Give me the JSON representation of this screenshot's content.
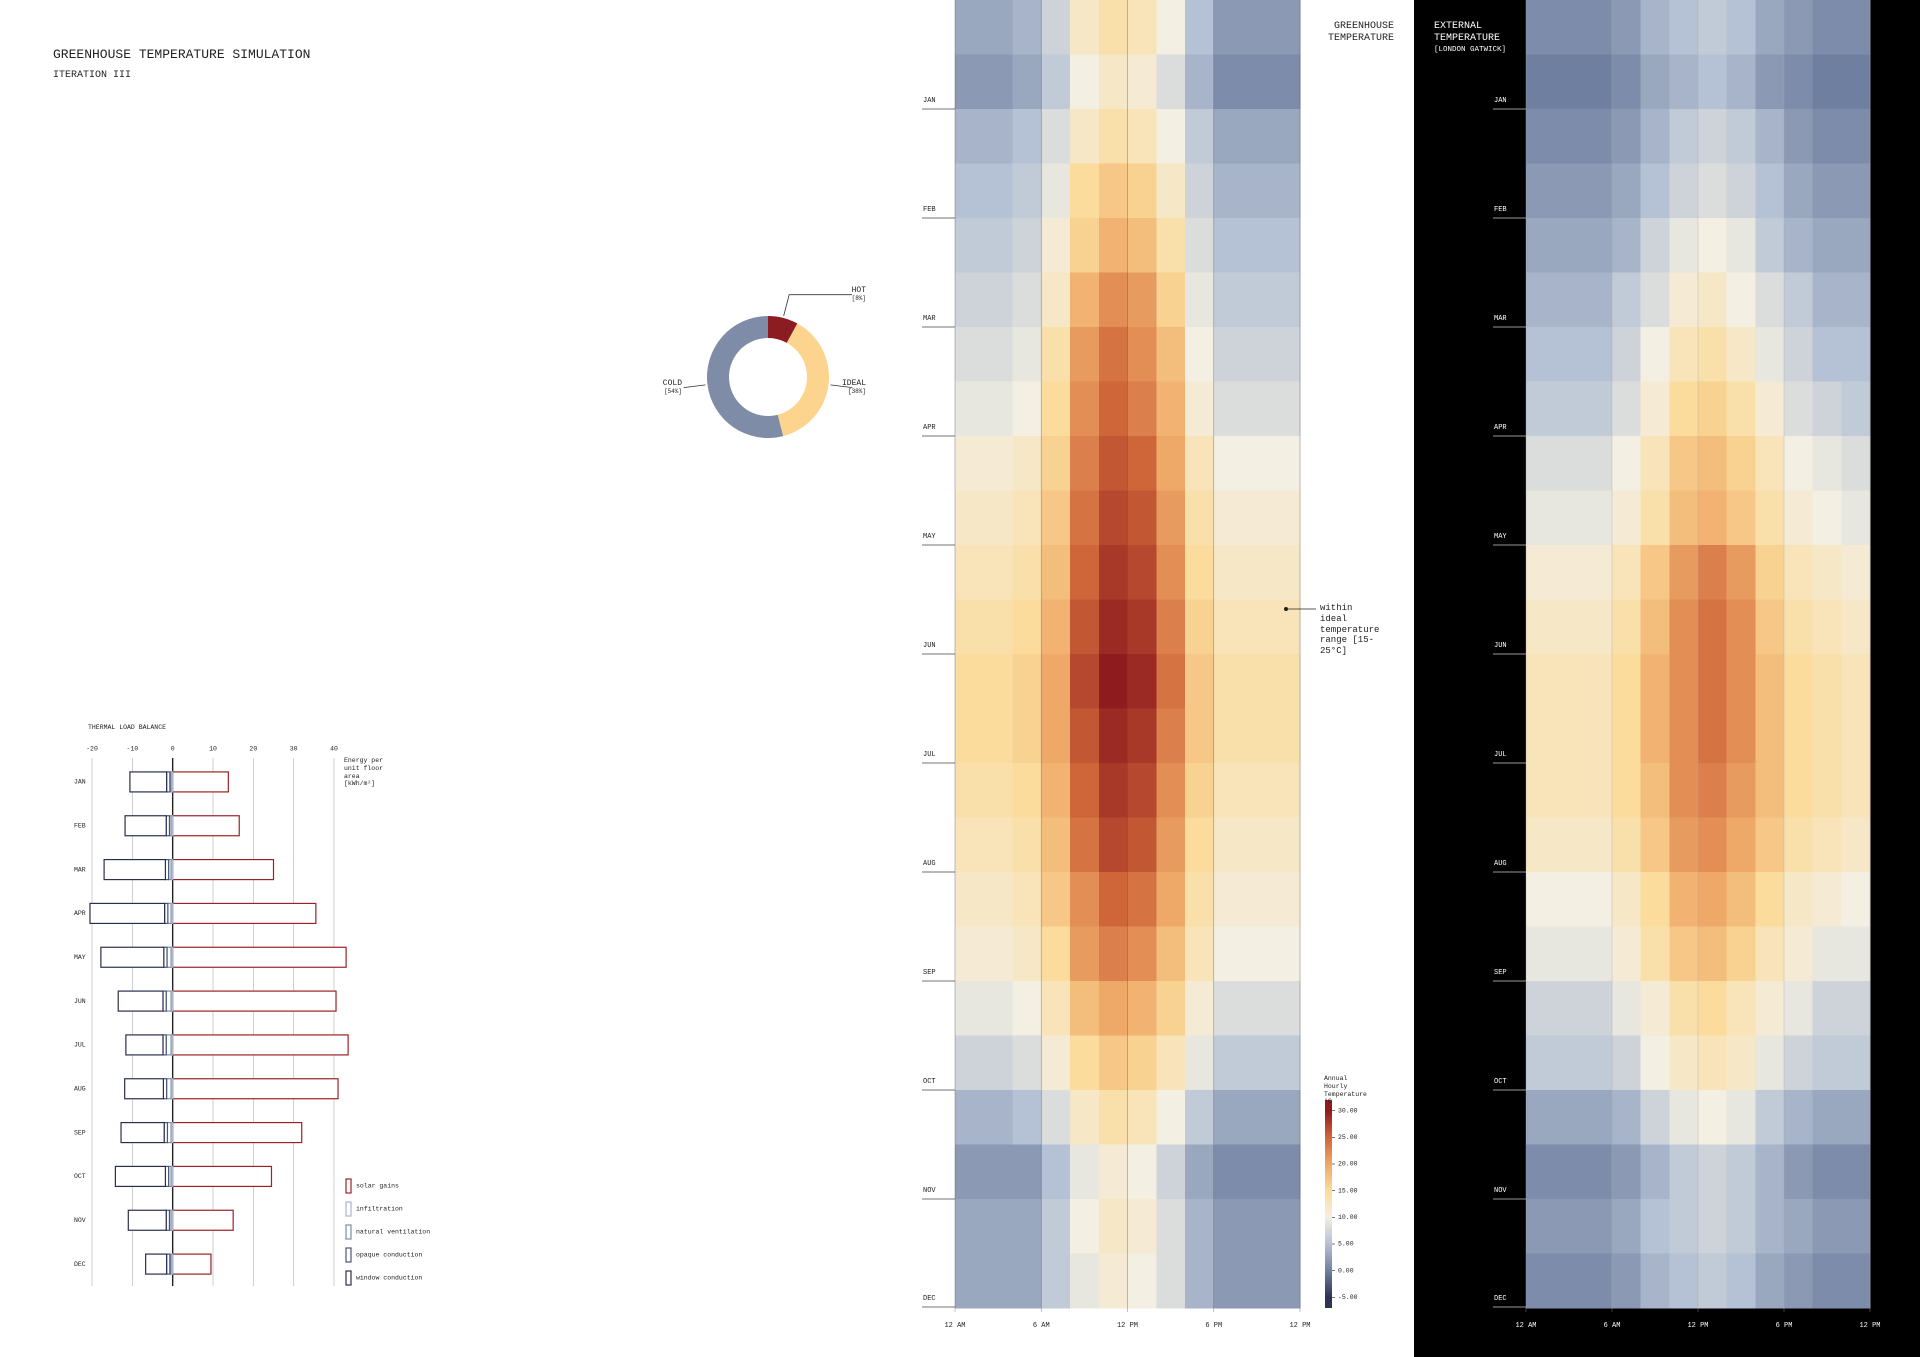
{
  "header": {
    "title": "GREENHOUSE TEMPERATURE SIMULATION",
    "subtitle": "ITERATION III"
  },
  "chart_data": [
    {
      "type": "donut",
      "categories": [
        "HOT",
        "IDEAL",
        "COLD"
      ],
      "values": [
        8,
        38,
        54
      ],
      "value_labels": [
        "[8%]",
        "[38%]",
        "[54%]"
      ],
      "colors": [
        "#8b1c22",
        "#fdd48e",
        "#7f8ca7"
      ]
    },
    {
      "type": "bar",
      "orientation": "horizontal",
      "stacked": true,
      "title": "THERMAL LOAD BALANCE",
      "xlabel": "Energy per unit floor area [kWh/m²]",
      "categories": [
        "JAN",
        "FEB",
        "MAR",
        "APR",
        "MAY",
        "JUN",
        "JUL",
        "AUG",
        "SEP",
        "OCT",
        "NOV",
        "DEC"
      ],
      "series": [
        {
          "name": "solar gains",
          "color": "#9b2226",
          "values": [
            13.8,
            16.5,
            25,
            35.5,
            43,
            40.5,
            43.5,
            41,
            32,
            24.5,
            15,
            9.5
          ]
        },
        {
          "name": "infiltration",
          "color": "#aab6cc",
          "values": [
            -0.4,
            -0.4,
            -0.4,
            -0.4,
            -0.4,
            -0.4,
            -0.4,
            -0.4,
            -0.4,
            -0.4,
            -0.4,
            -0.4
          ]
        },
        {
          "name": "natural ventilation",
          "color": "#7d8ba6",
          "values": [
            -0.3,
            -0.4,
            -0.6,
            -0.8,
            -1,
            -1.2,
            -1.2,
            -1.1,
            -0.9,
            -0.6,
            -0.4,
            -0.3
          ]
        },
        {
          "name": "opaque conduction",
          "color": "#4a5577",
          "values": [
            -0.8,
            -0.8,
            -0.8,
            -0.8,
            -0.8,
            -0.8,
            -0.8,
            -0.8,
            -0.8,
            -0.8,
            -0.8,
            -0.8
          ]
        },
        {
          "name": "window conduction",
          "color": "#2b2f4e",
          "values": [
            -9.1,
            -10.2,
            -15.2,
            -18.5,
            -15.6,
            -11.1,
            -9.2,
            -9.6,
            -10.7,
            -12.4,
            -9.4,
            -5.2
          ]
        }
      ],
      "xlim": [
        -20,
        40
      ],
      "xticks": [
        -20,
        -10,
        0,
        10,
        20,
        30,
        40
      ],
      "grid": true
    },
    {
      "type": "heatmap",
      "title": "GREENHOUSE TEMPERATURE",
      "annotation": "within ideal temperature range [15-25°C]",
      "y_categories": [
        null,
        "JAN",
        null,
        "FEB",
        null,
        "MAR",
        null,
        "APR",
        null,
        "MAY",
        null,
        "JUN",
        null,
        "JUL",
        null,
        "AUG",
        null,
        "SEP",
        null,
        "OCT",
        null,
        "NOV",
        null,
        "DEC"
      ],
      "x": [
        0,
        2,
        4,
        6,
        8,
        10,
        12,
        14,
        16,
        18,
        20,
        22
      ],
      "xlim": [
        0,
        24
      ],
      "xticks": [
        {
          "value": 0,
          "label": "12 AM"
        },
        {
          "value": 6,
          "label": "6 AM"
        },
        {
          "value": 12,
          "label": "12 PM"
        },
        {
          "value": 18,
          "label": "6 PM"
        },
        {
          "value": 24,
          "label": "12 PM"
        }
      ],
      "values": [
        [
          3,
          3,
          4,
          7,
          12,
          14,
          13,
          10,
          5,
          2,
          2,
          2
        ],
        [
          2,
          2,
          3,
          6,
          10,
          12,
          11,
          8,
          4,
          1,
          1,
          1
        ],
        [
          4,
          4,
          5,
          8,
          12,
          14,
          13,
          10,
          6,
          3,
          3,
          3
        ],
        [
          5,
          5,
          6,
          9,
          15,
          17,
          16,
          12,
          7,
          4,
          4,
          4
        ],
        [
          6,
          6,
          7,
          11,
          16,
          19,
          18,
          14,
          8,
          5,
          5,
          5
        ],
        [
          7,
          7,
          8,
          12,
          19,
          22,
          21,
          16,
          9,
          6,
          6,
          6
        ],
        [
          8,
          8,
          9,
          14,
          21,
          24,
          22,
          18,
          10,
          7,
          7,
          7
        ],
        [
          9,
          9,
          10,
          15,
          22,
          25,
          23,
          19,
          11,
          8,
          8,
          8
        ],
        [
          11,
          11,
          12,
          16,
          23,
          26,
          25,
          20,
          13,
          10,
          10,
          10
        ],
        [
          12,
          12,
          13,
          17,
          24,
          27,
          26,
          21,
          14,
          11,
          11,
          11
        ],
        [
          13,
          13,
          14,
          18,
          25,
          28,
          27,
          22,
          15,
          12,
          12,
          12
        ],
        [
          14,
          14,
          15,
          19,
          26,
          29,
          28,
          23,
          16,
          13,
          13,
          13
        ],
        [
          15,
          15,
          16,
          20,
          27,
          30,
          29,
          24,
          17,
          14,
          14,
          14
        ],
        [
          15,
          15,
          16,
          20,
          26,
          29,
          28,
          23,
          17,
          14,
          14,
          14
        ],
        [
          14,
          14,
          15,
          19,
          25,
          28,
          27,
          22,
          16,
          13,
          13,
          13
        ],
        [
          13,
          13,
          14,
          18,
          24,
          27,
          26,
          21,
          15,
          12,
          12,
          12
        ],
        [
          12,
          12,
          13,
          17,
          22,
          25,
          24,
          20,
          14,
          11,
          11,
          11
        ],
        [
          11,
          11,
          12,
          15,
          21,
          23,
          22,
          18,
          13,
          10,
          10,
          10
        ],
        [
          9,
          9,
          10,
          13,
          18,
          20,
          19,
          16,
          11,
          8,
          8,
          8
        ],
        [
          7,
          7,
          8,
          11,
          15,
          17,
          16,
          13,
          9,
          6,
          6,
          6
        ],
        [
          4,
          4,
          5,
          8,
          12,
          14,
          13,
          10,
          6,
          3,
          3,
          3
        ],
        [
          2,
          2,
          2,
          5,
          9,
          11,
          10,
          7,
          3,
          1,
          1,
          1
        ],
        [
          3,
          3,
          3,
          6,
          10,
          12,
          11,
          8,
          4,
          2,
          2,
          2
        ],
        [
          3,
          3,
          3,
          6,
          9,
          11,
          10,
          8,
          4,
          2,
          2,
          2
        ]
      ],
      "colorbar": {
        "title": "Annual Hourly Temperature °C",
        "clim": [
          -7,
          32
        ],
        "ticks": [
          {
            "value": 30,
            "label": "30.00"
          },
          {
            "value": 25,
            "label": "25.00"
          },
          {
            "value": 20,
            "label": "20.00"
          },
          {
            "value": 15,
            "label": "15.00"
          },
          {
            "value": 10,
            "label": "10.00"
          },
          {
            "value": 5,
            "label": "5.00"
          },
          {
            "value": 0,
            "label": "0.00"
          },
          {
            "value": -5,
            "label": "-5.00"
          }
        ],
        "colors": [
          "#8e1b1e",
          "#cf663a",
          "#eea867",
          "#fbdc9c",
          "#f3efe2",
          "#b5c1d4",
          "#6f7fa0",
          "#2e3253"
        ]
      }
    },
    {
      "type": "heatmap",
      "title": "EXTERNAL TEMPERATURE",
      "subtitle": "[LONDON GATWICK]",
      "y_categories": [
        null,
        "JAN",
        null,
        "FEB",
        null,
        "MAR",
        null,
        "APR",
        null,
        "MAY",
        null,
        "JUN",
        null,
        "JUL",
        null,
        "AUG",
        null,
        "SEP",
        null,
        "OCT",
        null,
        "NOV",
        null,
        "DEC"
      ],
      "x": [
        0,
        2,
        4,
        6,
        8,
        10,
        12,
        14,
        16,
        18,
        20,
        22
      ],
      "xlim": [
        0,
        24
      ],
      "xticks": [
        {
          "value": 0,
          "label": "12 AM"
        },
        {
          "value": 6,
          "label": "6 AM"
        },
        {
          "value": 12,
          "label": "12 PM"
        },
        {
          "value": 18,
          "label": "6 PM"
        },
        {
          "value": 24,
          "label": "12 PM"
        }
      ],
      "values": [
        [
          1,
          1,
          1,
          2,
          4,
          5,
          6,
          5,
          3,
          2,
          1,
          1
        ],
        [
          0,
          0,
          0,
          1,
          3,
          4,
          5,
          4,
          2,
          1,
          0,
          0
        ],
        [
          1,
          1,
          1,
          2,
          4,
          6,
          7,
          6,
          4,
          2,
          1,
          1
        ],
        [
          2,
          2,
          2,
          3,
          5,
          7,
          8,
          7,
          5,
          3,
          2,
          2
        ],
        [
          3,
          3,
          3,
          4,
          7,
          9,
          10,
          9,
          6,
          4,
          3,
          3
        ],
        [
          4,
          4,
          4,
          6,
          8,
          11,
          12,
          10,
          8,
          6,
          4,
          4
        ],
        [
          5,
          5,
          5,
          7,
          10,
          13,
          14,
          12,
          9,
          7,
          5,
          5
        ],
        [
          6,
          6,
          6,
          8,
          11,
          15,
          16,
          14,
          11,
          8,
          7,
          6
        ],
        [
          8,
          8,
          8,
          10,
          13,
          17,
          18,
          16,
          13,
          10,
          9,
          8
        ],
        [
          9,
          9,
          9,
          11,
          14,
          18,
          19,
          17,
          14,
          11,
          10,
          9
        ],
        [
          11,
          11,
          11,
          13,
          17,
          21,
          23,
          21,
          16,
          13,
          12,
          11
        ],
        [
          12,
          12,
          12,
          14,
          18,
          22,
          24,
          22,
          17,
          14,
          13,
          12
        ],
        [
          13,
          13,
          13,
          15,
          19,
          22,
          24,
          22,
          18,
          15,
          14,
          13
        ],
        [
          13,
          13,
          13,
          15,
          19,
          22,
          24,
          22,
          18,
          15,
          14,
          13
        ],
        [
          13,
          13,
          13,
          15,
          18,
          22,
          23,
          21,
          18,
          15,
          14,
          13
        ],
        [
          12,
          12,
          12,
          14,
          17,
          21,
          22,
          20,
          17,
          14,
          13,
          12
        ],
        [
          10,
          10,
          10,
          12,
          15,
          19,
          20,
          18,
          15,
          12,
          11,
          10
        ],
        [
          9,
          9,
          9,
          11,
          14,
          17,
          18,
          16,
          13,
          11,
          9,
          9
        ],
        [
          7,
          7,
          7,
          9,
          11,
          14,
          15,
          13,
          11,
          9,
          7,
          7
        ],
        [
          6,
          6,
          6,
          7,
          10,
          12,
          13,
          12,
          9,
          7,
          6,
          6
        ],
        [
          3,
          3,
          3,
          4,
          7,
          9,
          10,
          9,
          6,
          4,
          3,
          3
        ],
        [
          1,
          1,
          1,
          2,
          4,
          6,
          7,
          6,
          4,
          2,
          1,
          1
        ],
        [
          2,
          2,
          2,
          3,
          5,
          6,
          7,
          6,
          4,
          3,
          2,
          2
        ],
        [
          1,
          1,
          1,
          2,
          4,
          5,
          6,
          5,
          3,
          2,
          1,
          1
        ]
      ]
    }
  ]
}
